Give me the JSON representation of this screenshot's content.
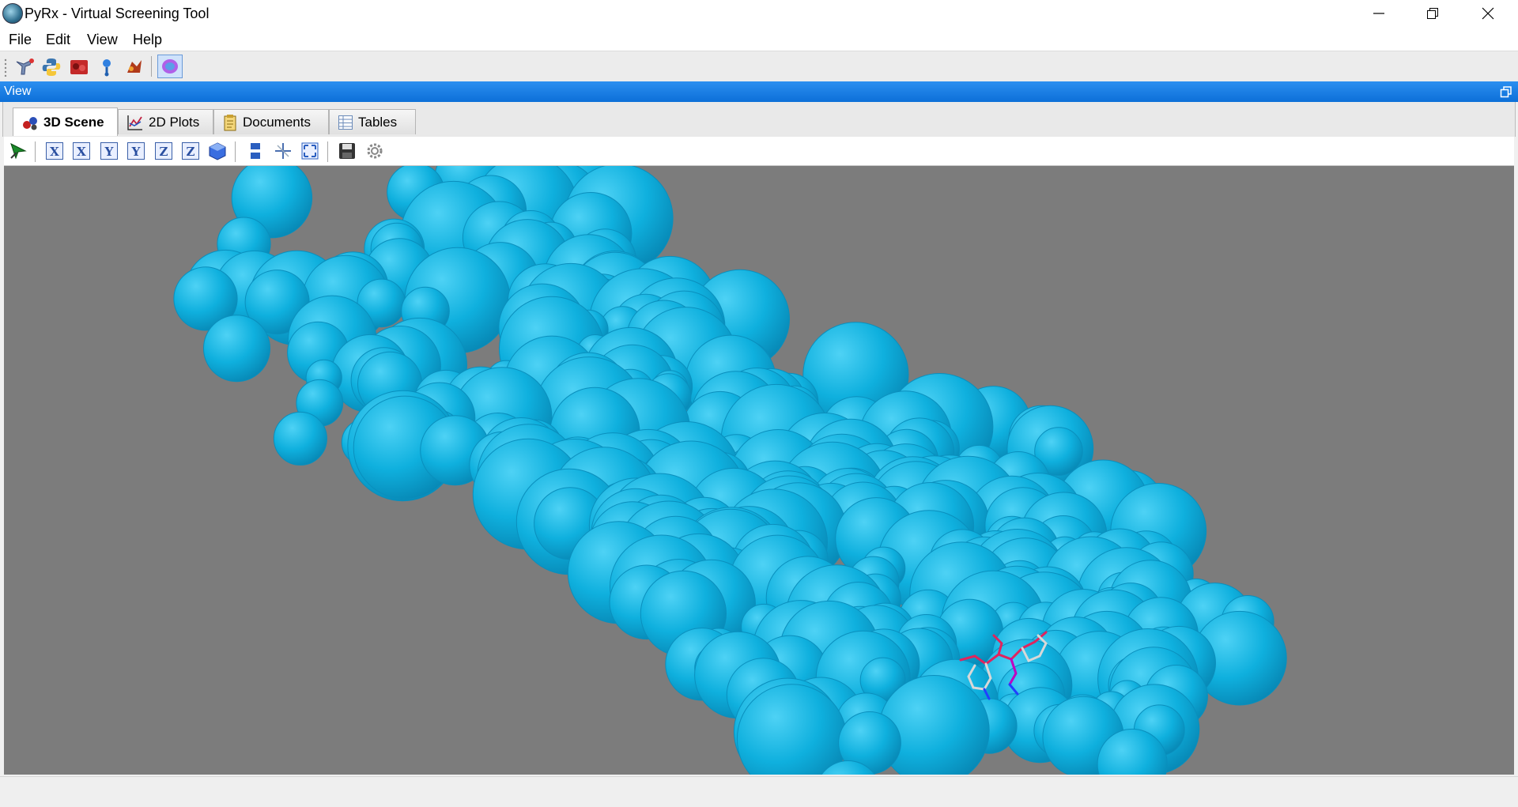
{
  "window": {
    "title": "PyRx - Virtual Screening Tool",
    "controls": [
      "minimize",
      "restore",
      "close"
    ]
  },
  "menubar": {
    "items": [
      "File",
      "Edit",
      "View",
      "Help"
    ]
  },
  "toolbar": {
    "icons": [
      "molecule-loader-icon",
      "python-shell-icon",
      "chemistry-table-icon",
      "ligand-icon",
      "docking-wizard-icon",
      "surface-toggle-icon"
    ]
  },
  "view_panel": {
    "title": "View",
    "tabs": [
      {
        "label": "3D Scene",
        "icon": "scene-3d-icon",
        "active": true
      },
      {
        "label": "2D Plots",
        "icon": "plot-2d-icon",
        "active": false
      },
      {
        "label": "Documents",
        "icon": "documents-icon",
        "active": false
      },
      {
        "label": "Tables",
        "icon": "tables-icon",
        "active": false
      }
    ]
  },
  "scene_toolbar": {
    "axis_buttons": [
      "X",
      "X",
      "Y",
      "Y",
      "Z",
      "Z"
    ],
    "icons": [
      "pick-arrow-icon",
      "iso-view-icon",
      "parallel-projection-icon",
      "center-icon",
      "fit-view-icon",
      "save-image-icon",
      "settings-icon"
    ]
  },
  "scene": {
    "background": "#7c7c7c",
    "surface_color": "#0fb0de",
    "ligand_colors": [
      "#e0245e",
      "#c000c0",
      "#d8d8d8",
      "#2040ff"
    ]
  }
}
